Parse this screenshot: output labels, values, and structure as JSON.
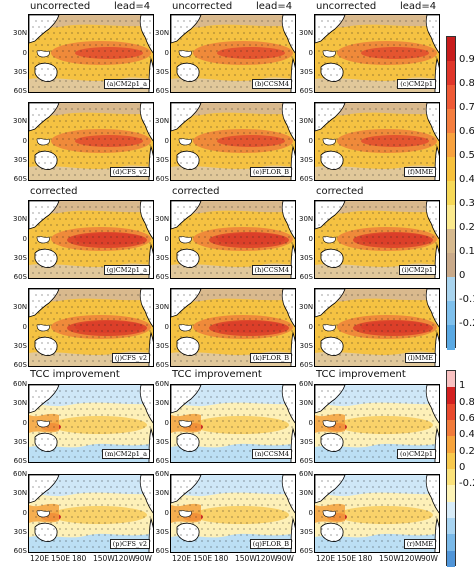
{
  "figure": {
    "groups": [
      {
        "header": "uncorrected",
        "lead_label": "lead=4"
      },
      {
        "header": "corrected",
        "lead_label": ""
      },
      {
        "header": "TCC improvement",
        "lead_label": ""
      }
    ],
    "panels": [
      {
        "tag": "(a)CM2p1_a",
        "group": 0,
        "stipple": true
      },
      {
        "tag": "(b)CCSM4",
        "group": 0,
        "stipple": true
      },
      {
        "tag": "(c)CM2p1",
        "group": 0,
        "stipple": true
      },
      {
        "tag": "(d)CFS_v2",
        "group": 0,
        "stipple": true
      },
      {
        "tag": "(e)FLOR_B",
        "group": 0,
        "stipple": true
      },
      {
        "tag": "(f)MME",
        "group": 0,
        "stipple": true
      },
      {
        "tag": "(g)CM2p1_a",
        "group": 1,
        "stipple": true
      },
      {
        "tag": "(h)CCSM4",
        "group": 1,
        "stipple": true
      },
      {
        "tag": "(i)CM2p1",
        "group": 1,
        "stipple": true
      },
      {
        "tag": "(j)CFS_v2",
        "group": 1,
        "stipple": true
      },
      {
        "tag": "(k)FLOR_B",
        "group": 1,
        "stipple": true
      },
      {
        "tag": "(l)MME",
        "group": 1,
        "stipple": true
      },
      {
        "tag": "(m)CM2p1_a",
        "group": 2,
        "stipple": true
      },
      {
        "tag": "(n)CCSM4",
        "group": 2,
        "stipple": true
      },
      {
        "tag": "(o)CM2p1",
        "group": 2,
        "stipple": true
      },
      {
        "tag": "(p)CFS_v2",
        "group": 2,
        "stipple": true
      },
      {
        "tag": "(q)FLOR_B",
        "group": 2,
        "stipple": true
      },
      {
        "tag": "(r)MME",
        "group": 2,
        "stipple": true
      }
    ],
    "lat_ticks_top": [
      "30N",
      "0",
      "30S",
      "60S"
    ],
    "lat_ticks_bottom": [
      "60N",
      "30N",
      "0",
      "30S",
      "60S"
    ],
    "lon_ticks": [
      "120E",
      "150E",
      "180",
      "150W",
      "120W",
      "90W"
    ],
    "colorbar_top": {
      "labels": [
        "0.9",
        "0.8",
        "0.7",
        "0.6",
        "0.5",
        "0.4",
        "0.3",
        "0.2",
        "0.1",
        "0",
        "-0.1",
        "-0.2"
      ],
      "colors": [
        "#c81d1d",
        "#e0362a",
        "#ef5a36",
        "#f57e3f",
        "#f8a23e",
        "#f7c13c",
        "#f6d857",
        "#fbe98d",
        "#d6b98e",
        "#c9aa8a",
        "#a9d4ee",
        "#7fc0ec",
        "#5aa9e3"
      ]
    },
    "colorbar_bottom": {
      "labels": [
        "1",
        "0.8",
        "0.6",
        "0.4",
        "0.2",
        "0",
        "-0.2"
      ],
      "colors": [
        "#f9c1c1",
        "#d32020",
        "#e94a2e",
        "#f27b3b",
        "#f7a43c",
        "#f8c94d",
        "#fbe27a",
        "#fdf3b6",
        "#d8ecf8",
        "#a8d4f1",
        "#7ab9e8",
        "#5095d8"
      ]
    }
  }
}
